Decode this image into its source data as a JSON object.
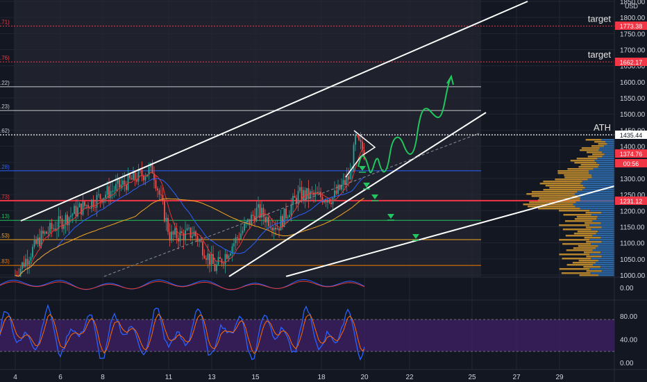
{
  "chart_data": [
    {
      "type": "line",
      "currency": "USD",
      "price_axis_ticks": [
        1000,
        1050,
        1100,
        1150,
        1200,
        1250,
        1300,
        1350,
        1400,
        1450,
        1500,
        1550,
        1600,
        1650,
        1700,
        1750,
        1800,
        1850
      ],
      "time_axis_ticks": [
        "4",
        "6",
        "8",
        "11",
        "13",
        "15",
        "18",
        "20",
        "22",
        "25",
        "27",
        "29"
      ],
      "ylim": [
        990,
        1860
      ],
      "annotations": [
        {
          "text": "target",
          "price": 1773.38
        },
        {
          "text": "target",
          "price": 1662.17
        },
        {
          "text": "ATH",
          "price": 1435.44
        }
      ],
      "price_badges": [
        {
          "label": "1773.38",
          "color": "#f23645"
        },
        {
          "label": "1662.17",
          "color": "#f23645"
        },
        {
          "label": "1435.44",
          "color": "#ffffff"
        },
        {
          "label": "1374.76",
          "color": "#f23645"
        },
        {
          "label": "00:56",
          "color": "#f23645"
        },
        {
          "label": "1231.12",
          "color": "#f23645"
        }
      ],
      "fib_levels": [
        {
          "label": ".71)",
          "price": 1773.38
        },
        {
          "label": ".76)",
          "price": 1662.17
        },
        {
          "label": ".22)",
          "price": 1585
        },
        {
          "label": ".23)",
          "price": 1511
        },
        {
          "label": ".62)",
          "price": 1435.44
        },
        {
          "label": ".28)",
          "price": 1324
        },
        {
          "label": ".73)",
          "price": 1231.12
        },
        {
          "label": ".13)",
          "price": 1170
        },
        {
          "label": ".53)",
          "price": 1110
        },
        {
          "label": ".83)",
          "price": 1030
        }
      ]
    },
    {
      "type": "line",
      "indicator": "stochastic",
      "yticks": [
        "80.00",
        "40.00",
        "0.00"
      ],
      "ylim": [
        0,
        100
      ]
    },
    {
      "type": "line",
      "indicator": "oscillator",
      "yticks": [
        "0.00"
      ]
    }
  ]
}
